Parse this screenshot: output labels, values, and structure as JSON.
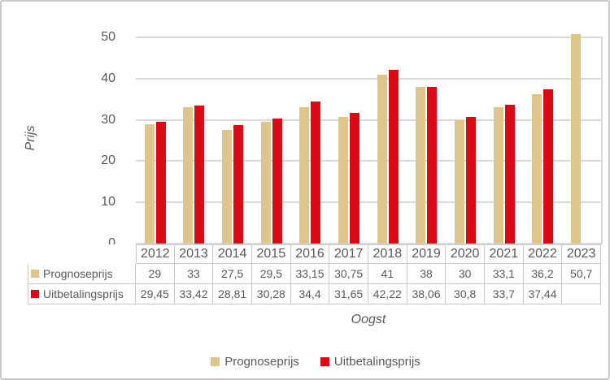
{
  "chart_data": {
    "type": "bar",
    "title": "",
    "xlabel": "Oogst",
    "ylabel": "Prijs",
    "ylim": [
      0,
      50
    ],
    "yticks": [
      0,
      10,
      20,
      30,
      40,
      50
    ],
    "grid": true,
    "legend_position": "bottom",
    "data_table_shown": true,
    "categories": [
      "2012",
      "2013",
      "2014",
      "2015",
      "2016",
      "2017",
      "2018",
      "2019",
      "2020",
      "2021",
      "2022",
      "2023"
    ],
    "series": [
      {
        "name": "Prognoseprijs",
        "color": "#DDC58B",
        "values": [
          29,
          33,
          27.5,
          29.5,
          33.15,
          30.75,
          41,
          38,
          30,
          33.1,
          36.2,
          50.7
        ],
        "display": [
          "29",
          "33",
          "27,5",
          "29,5",
          "33,15",
          "30,75",
          "41",
          "38",
          "30",
          "33,1",
          "36,2",
          "50,7"
        ]
      },
      {
        "name": "Uitbetalingsprijs",
        "color": "#DC0A15",
        "values": [
          29.45,
          33.42,
          28.81,
          30.28,
          34.4,
          31.65,
          42.22,
          38.06,
          30.8,
          33.7,
          37.44,
          null
        ],
        "display": [
          "29,45",
          "33,42",
          "28,81",
          "30,28",
          "34,4",
          "31,65",
          "42,22",
          "38,06",
          "30,8",
          "33,7",
          "37,44",
          ""
        ]
      }
    ],
    "legend": [
      "Prognoseprijs",
      "Uitbetalingsprijs"
    ]
  },
  "style": {
    "text_color": "#595959",
    "grid_color": "#D9D9D9",
    "table_border_color": "#C9C9C9",
    "frame_border_color": "#C9C9C9"
  }
}
